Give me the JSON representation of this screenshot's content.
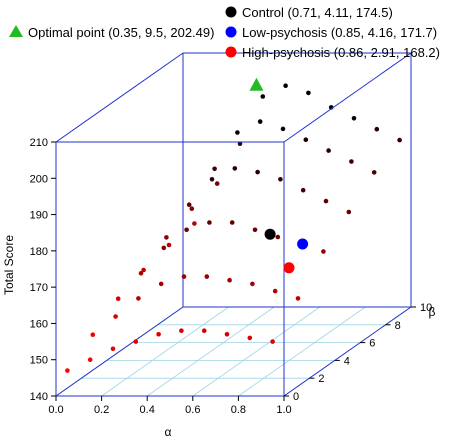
{
  "chart_data": {
    "type": "scatter",
    "title": "",
    "xlabel": "α",
    "ylabel": "β",
    "zlabel": "Total Score",
    "xlim": [
      0,
      1
    ],
    "ylim": [
      0,
      10
    ],
    "zlim": [
      140,
      210
    ],
    "x_ticks": [
      "0.0",
      "0.2",
      "0.4",
      "0.6",
      "0.8",
      "1.0"
    ],
    "y_ticks": [
      "0",
      "2",
      "4",
      "6",
      "8",
      "10"
    ],
    "z_ticks": [
      "140",
      "150",
      "160",
      "170",
      "180",
      "190",
      "200",
      "210"
    ],
    "grid": "floor",
    "legend_position": "top",
    "legend": [
      "Optimal point (0.35, 9.5, 202.49)",
      "Control (0.71, 4.11, 174.5)",
      "Low-psychosis (0.85, 4.16, 171.7)",
      "High-psychosis (0.86, 2.91, 168.2)"
    ],
    "series": [
      {
        "name": "Optimal point",
        "x": [
          0.35
        ],
        "y": [
          9.5
        ],
        "z": [
          202.49
        ],
        "color": "#22bb22",
        "marker": "triangle"
      },
      {
        "name": "Control",
        "x": [
          0.71
        ],
        "y": [
          4.11
        ],
        "z": [
          174.5
        ],
        "color": "#000000",
        "marker": "circle"
      },
      {
        "name": "Low-psychosis",
        "x": [
          0.85
        ],
        "y": [
          4.16
        ],
        "z": [
          171.7
        ],
        "color": "#0000ff",
        "marker": "circle"
      },
      {
        "name": "High-psychosis",
        "x": [
          0.86
        ],
        "y": [
          2.91
        ],
        "z": [
          168.2
        ],
        "color": "#ff0000",
        "marker": "circle"
      }
    ],
    "surface": {
      "alpha": [
        0.05,
        0.15,
        0.25,
        0.35,
        0.45,
        0.55,
        0.65,
        0.75,
        0.85,
        0.95
      ],
      "beta": [
        0,
        2,
        4,
        6,
        8,
        10
      ],
      "total_score": [
        [
          147.0,
          152.0,
          157.0,
          160.0,
          162.0,
          163.0
        ],
        [
          150.0,
          157.0,
          164.0,
          169.0,
          172.0,
          174.0
        ],
        [
          153.0,
          162.0,
          171.0,
          178.0,
          183.0,
          185.0
        ],
        [
          155.0,
          166.0,
          176.0,
          185.0,
          193.0,
          198.0
        ],
        [
          157.0,
          168.0,
          178.0,
          188.0,
          196.0,
          201.0
        ],
        [
          158.0,
          168.0,
          178.0,
          187.0,
          194.0,
          199.0
        ],
        [
          158.0,
          167.0,
          176.0,
          185.0,
          191.0,
          195.0
        ],
        [
          157.0,
          166.0,
          174.0,
          182.0,
          188.0,
          192.0
        ],
        [
          156.0,
          164.0,
          172.0,
          179.0,
          185.0,
          189.0
        ],
        [
          155.0,
          162.0,
          170.0,
          176.0,
          182.0,
          186.0
        ]
      ]
    },
    "colors": {
      "box": "#2233cc",
      "grid": "#9fd3e6",
      "gradient_low": "#ff0000",
      "gradient_high": "#000000"
    }
  }
}
